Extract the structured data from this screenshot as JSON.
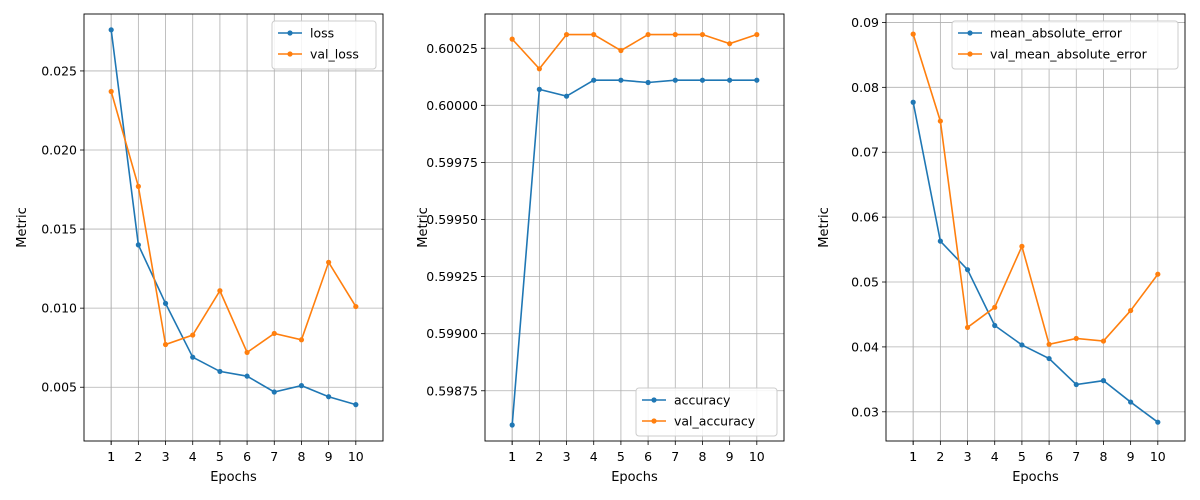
{
  "chart_data": [
    {
      "type": "line",
      "xlabel": "Epochs",
      "ylabel": "Metric",
      "x": [
        1,
        2,
        3,
        4,
        5,
        6,
        7,
        8,
        9,
        10
      ],
      "xticks": [
        "1",
        "1",
        "2",
        "3",
        "4",
        "5",
        "6",
        "7",
        "8",
        "9",
        "10"
      ],
      "xtick_values": [
        1,
        1,
        2,
        3,
        4,
        5,
        6,
        7,
        8,
        9,
        10
      ],
      "xlim": [
        0,
        11
      ],
      "ylim": [
        0.0016,
        0.0286
      ],
      "yticks": [
        0.005,
        0.01,
        0.015,
        0.02,
        0.025
      ],
      "ytick_labels": [
        "0.005",
        "0.010",
        "0.015",
        "0.020",
        "0.025"
      ],
      "grid": true,
      "legend_position": "top-right",
      "series": [
        {
          "name": "loss",
          "color": "#1f77b4",
          "values": [
            0.0276,
            0.014,
            0.0103,
            0.0069,
            0.006,
            0.0057,
            0.0047,
            0.0051,
            0.0044,
            0.0039
          ]
        },
        {
          "name": "val_loss",
          "color": "#ff7f0e",
          "values": [
            0.0237,
            0.0177,
            0.0077,
            0.0083,
            0.0111,
            0.0072,
            0.0084,
            0.008,
            0.0129,
            0.0101
          ]
        }
      ]
    },
    {
      "type": "line",
      "xlabel": "Epochs",
      "ylabel": "Metric",
      "x": [
        1,
        2,
        3,
        4,
        5,
        6,
        7,
        8,
        9,
        10
      ],
      "xticks": [
        "1",
        "1",
        "2",
        "3",
        "4",
        "5",
        "6",
        "7",
        "8",
        "9",
        "10"
      ],
      "xtick_values": [
        1,
        1,
        2,
        3,
        4,
        5,
        6,
        7,
        8,
        9,
        10
      ],
      "xlim": [
        0,
        11
      ],
      "ylim": [
        0.59853,
        0.6004
      ],
      "yticks": [
        0.59875,
        0.599,
        0.59925,
        0.5995,
        0.59975,
        0.6,
        0.60025
      ],
      "ytick_labels": [
        "0.59875",
        "0.59900",
        "0.59925",
        "0.59950",
        "0.59975",
        "0.60000",
        "0.60025"
      ],
      "grid": true,
      "legend_position": "bottom-right",
      "series": [
        {
          "name": "accuracy",
          "color": "#1f77b4",
          "values": [
            0.5986,
            0.60007,
            0.60004,
            0.60011,
            0.60011,
            0.6001,
            0.60011,
            0.60011,
            0.60011,
            0.60011
          ]
        },
        {
          "name": "val_accuracy",
          "color": "#ff7f0e",
          "values": [
            0.60029,
            0.60016,
            0.60031,
            0.60031,
            0.60024,
            0.60031,
            0.60031,
            0.60031,
            0.60027,
            0.60031
          ]
        }
      ]
    },
    {
      "type": "line",
      "xlabel": "Epochs",
      "ylabel": "Metric",
      "x": [
        1,
        2,
        3,
        4,
        5,
        6,
        7,
        8,
        9,
        10
      ],
      "xticks": [
        "1",
        "1",
        "2",
        "3",
        "4",
        "5",
        "6",
        "7",
        "8",
        "9",
        "10"
      ],
      "xtick_values": [
        1,
        1,
        2,
        3,
        4,
        5,
        6,
        7,
        8,
        9,
        10
      ],
      "xlim": [
        0,
        11
      ],
      "ylim": [
        0.0255,
        0.0913
      ],
      "yticks": [
        0.03,
        0.04,
        0.05,
        0.06,
        0.07,
        0.08,
        0.09
      ],
      "ytick_labels": [
        "0.03",
        "0.04",
        "0.05",
        "0.06",
        "0.07",
        "0.08",
        "0.09"
      ],
      "grid": true,
      "legend_position": "top-right",
      "series": [
        {
          "name": "mean_absolute_error",
          "color": "#1f77b4",
          "values": [
            0.0777,
            0.0563,
            0.0519,
            0.0433,
            0.0403,
            0.0382,
            0.0342,
            0.0348,
            0.0315,
            0.0284
          ]
        },
        {
          "name": "val_mean_absolute_error",
          "color": "#ff7f0e",
          "values": [
            0.0882,
            0.0748,
            0.043,
            0.0461,
            0.0555,
            0.0404,
            0.0413,
            0.0409,
            0.0456,
            0.0512
          ]
        }
      ]
    }
  ]
}
